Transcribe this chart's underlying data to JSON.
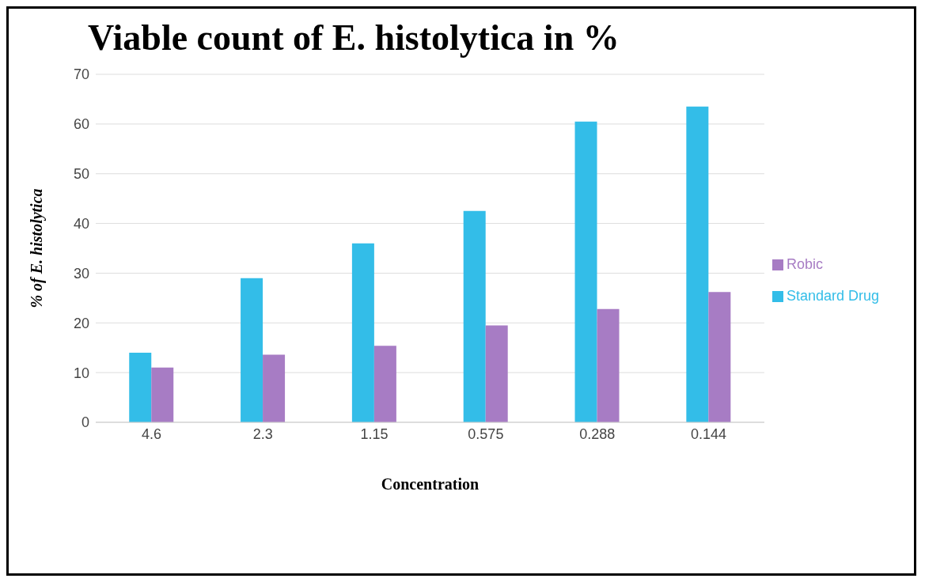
{
  "chart_data": {
    "type": "bar",
    "title": "Viable count of E. histolytica in %",
    "xlabel": "Concentration",
    "ylabel": "% of E. histolytica",
    "categories": [
      "4.6",
      "2.3",
      "1.15",
      "0.575",
      "0.288",
      "0.144"
    ],
    "series": [
      {
        "name": "Standard Drug",
        "color": "#33bde8",
        "values": [
          14,
          29,
          36,
          42.5,
          60.5,
          63.5
        ]
      },
      {
        "name": "Robic",
        "color": "#a77cc4",
        "values": [
          11,
          13.6,
          15.4,
          19.5,
          22.8,
          26.2
        ]
      }
    ],
    "ylim": [
      0,
      70
    ],
    "yticks": [
      0,
      10,
      20,
      30,
      40,
      50,
      60,
      70
    ],
    "grid": "y",
    "legend": "right"
  }
}
